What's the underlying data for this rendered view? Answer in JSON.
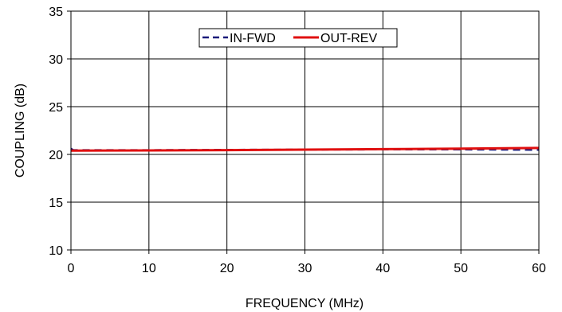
{
  "chart_data": {
    "type": "line",
    "title": "",
    "xlabel": "FREQUENCY (MHz)",
    "ylabel": "COUPLING (dB)",
    "xlim": [
      0,
      60
    ],
    "ylim": [
      10,
      35
    ],
    "x_ticks": [
      "0",
      "10",
      "20",
      "30",
      "40",
      "50",
      "60"
    ],
    "y_ticks": [
      "10",
      "15",
      "20",
      "25",
      "30",
      "35"
    ],
    "grid": true,
    "legend_position": "top-center",
    "series": [
      {
        "name": "IN-FWD",
        "color": "#1a1a7a",
        "style": "dashed",
        "x": [
          0,
          0.3,
          5,
          10,
          20,
          30,
          40,
          50,
          55,
          60
        ],
        "y": [
          20.6,
          20.45,
          20.45,
          20.45,
          20.48,
          20.5,
          20.52,
          20.52,
          20.5,
          20.48
        ]
      },
      {
        "name": "OUT-REV",
        "color": "#e01010",
        "style": "solid",
        "x": [
          0,
          10,
          20,
          30,
          40,
          50,
          60
        ],
        "y": [
          20.4,
          20.42,
          20.45,
          20.5,
          20.55,
          20.6,
          20.68
        ]
      }
    ]
  }
}
